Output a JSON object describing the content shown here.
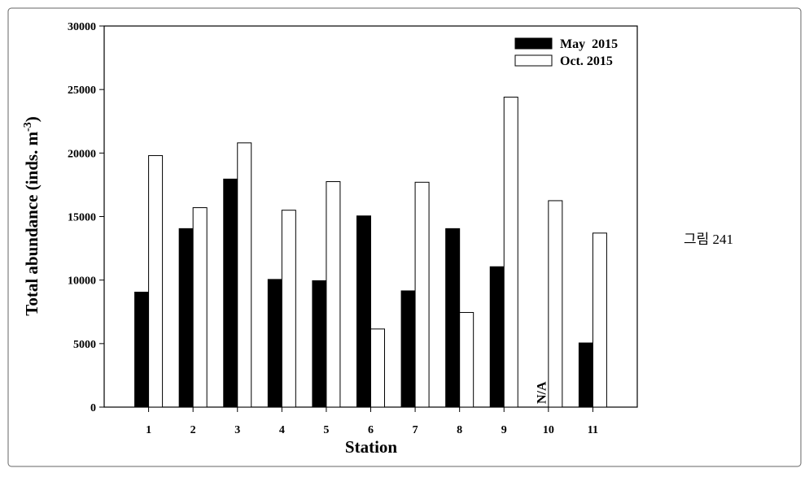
{
  "chart_data": {
    "type": "bar",
    "x_label": "Station",
    "y_label": "Total abundance (inds. m",
    "y_label_sup": "-3",
    "y_label_end": ")",
    "categories": [
      "1",
      "2",
      "3",
      "4",
      "5",
      "6",
      "7",
      "8",
      "9",
      "10",
      "11"
    ],
    "series": [
      {
        "name": "May  2015",
        "color": "#000000",
        "values": [
          9050,
          14050,
          17950,
          10050,
          9950,
          15050,
          9150,
          14050,
          11050,
          null,
          5050
        ]
      },
      {
        "name": "Oct. 2015",
        "color": "#ffffff",
        "values": [
          19800,
          15700,
          20800,
          15500,
          17750,
          6150,
          17700,
          7450,
          24400,
          16250,
          13700
        ]
      }
    ],
    "na_label": "N/A",
    "ylim": [
      0,
      30000
    ],
    "yticks": [
      0,
      5000,
      10000,
      15000,
      20000,
      25000,
      30000
    ],
    "grid": false,
    "legend": "upper right"
  },
  "caption": "그림 241"
}
